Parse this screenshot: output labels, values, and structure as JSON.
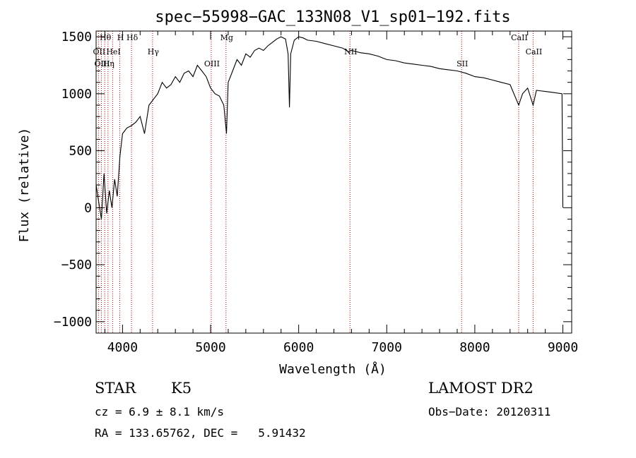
{
  "chart_data": {
    "type": "line",
    "title": "spec−55998−GAC_133N08_V1_sp01−192.fits",
    "xlabel": "Wavelength (Å)",
    "ylabel": "Flux (relative)",
    "xlim": [
      3700,
      9100
    ],
    "ylim": [
      -1100,
      1550
    ],
    "xticks": [
      4000,
      5000,
      6000,
      7000,
      8000,
      9000
    ],
    "yticks": [
      -1000,
      -500,
      0,
      500,
      1000,
      1500
    ],
    "ytick_labels": [
      "−1000",
      "−500",
      "0",
      "500",
      "1000",
      "1500"
    ],
    "grid": false,
    "series": [
      {
        "color": "#000000",
        "x": [
          3700,
          3730,
          3760,
          3790,
          3820,
          3850,
          3880,
          3910,
          3940,
          3970,
          4000,
          4050,
          4100,
          4150,
          4200,
          4250,
          4300,
          4350,
          4400,
          4450,
          4500,
          4550,
          4600,
          4650,
          4700,
          4750,
          4800,
          4850,
          4900,
          4950,
          5000,
          5050,
          5100,
          5150,
          5180,
          5200,
          5250,
          5300,
          5350,
          5400,
          5450,
          5500,
          5550,
          5600,
          5650,
          5700,
          5750,
          5800,
          5850,
          5880,
          5895,
          5910,
          5950,
          6000,
          6050,
          6100,
          6200,
          6300,
          6400,
          6500,
          6563,
          6600,
          6700,
          6800,
          6900,
          7000,
          7100,
          7200,
          7300,
          7400,
          7500,
          7600,
          7700,
          7800,
          7900,
          8000,
          8100,
          8200,
          8300,
          8400,
          8498,
          8542,
          8600,
          8662,
          8700,
          8800,
          8900,
          8990,
          9000
        ],
        "y": [
          200,
          50,
          -100,
          300,
          -50,
          150,
          0,
          250,
          100,
          450,
          650,
          700,
          720,
          750,
          800,
          650,
          900,
          950,
          1000,
          1100,
          1050,
          1080,
          1150,
          1100,
          1180,
          1200,
          1150,
          1250,
          1200,
          1150,
          1050,
          1000,
          980,
          900,
          650,
          1100,
          1200,
          1300,
          1250,
          1350,
          1320,
          1380,
          1400,
          1380,
          1420,
          1450,
          1480,
          1500,
          1480,
          1350,
          880,
          1350,
          1470,
          1500,
          1490,
          1470,
          1460,
          1440,
          1420,
          1400,
          1370,
          1380,
          1360,
          1350,
          1330,
          1300,
          1290,
          1270,
          1260,
          1250,
          1240,
          1220,
          1210,
          1200,
          1180,
          1150,
          1140,
          1120,
          1100,
          1080,
          900,
          1000,
          1050,
          900,
          1030,
          1020,
          1010,
          1000,
          0
        ]
      }
    ],
    "line_markers": [
      {
        "label": "Hθ",
        "x": 3798
      },
      {
        "label": "OII",
        "x": 3727
      },
      {
        "label": "OIII",
        "x": 3760
      },
      {
        "label": "H",
        "x": 3969
      },
      {
        "label": "HeI",
        "x": 3889
      },
      {
        "label": "Hη",
        "x": 3835
      },
      {
        "label": "Hδ",
        "x": 4102
      },
      {
        "label": "Hγ",
        "x": 4341
      },
      {
        "label": "OIII",
        "x": 5007
      },
      {
        "label": "Mg",
        "x": 5175
      },
      {
        "label": "NII",
        "x": 6583
      },
      {
        "label": "SII",
        "x": 7850
      },
      {
        "label": "CaII",
        "x": 8498
      },
      {
        "label": "CaII",
        "x": 8662
      }
    ]
  },
  "info": {
    "class_label": "STAR",
    "subclass": "K5",
    "survey": "LAMOST DR2",
    "cz": "cz = 6.9 ± 8.1 km/s",
    "obs_date": "Obs−Date: 20120311",
    "coords": "RA = 133.65762, DEC =   5.91432"
  }
}
